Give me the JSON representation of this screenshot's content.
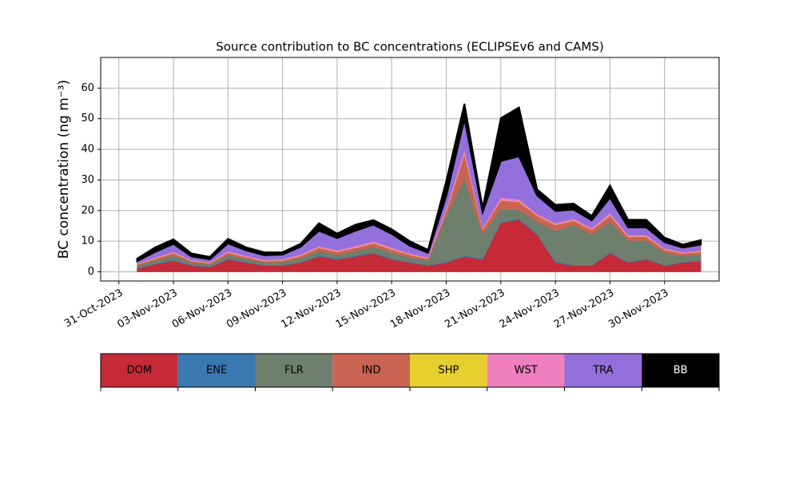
{
  "chart_data": {
    "type": "stacked_area",
    "title": "Source contribution to BC concentrations (ECLIPSEv6 and CAMS)",
    "y_label": "BC concentration (ng m⁻³)",
    "x": [
      "2023-11-01",
      "2023-11-02",
      "2023-11-03",
      "2023-11-04",
      "2023-11-05",
      "2023-11-06",
      "2023-11-07",
      "2023-11-08",
      "2023-11-09",
      "2023-11-10",
      "2023-11-11",
      "2023-11-12",
      "2023-11-13",
      "2023-11-14",
      "2023-11-15",
      "2023-11-16",
      "2023-11-17",
      "2023-11-18",
      "2023-11-19",
      "2023-11-20",
      "2023-11-21",
      "2023-11-22",
      "2023-11-23",
      "2023-11-24",
      "2023-11-25",
      "2023-11-26",
      "2023-11-27",
      "2023-11-28",
      "2023-11-29",
      "2023-11-30",
      "2023-12-01",
      "2023-12-02"
    ],
    "series": [
      {
        "name": "DOM",
        "color": "#c52a36",
        "values": [
          1,
          2.5,
          3.5,
          2,
          1.5,
          4,
          3,
          2,
          2,
          3,
          5,
          4,
          5,
          6,
          4,
          3,
          2,
          3,
          5,
          4,
          16,
          17,
          12,
          3,
          2,
          2,
          6,
          3,
          4,
          2,
          3,
          3.5
        ]
      },
      {
        "name": "ENE",
        "color": "#3a78b0",
        "values": [
          0.2,
          0.2,
          0.3,
          0.2,
          0.2,
          0.3,
          0.2,
          0.2,
          0.2,
          0.2,
          0.3,
          0.3,
          0.3,
          0.3,
          0.3,
          0.2,
          0.2,
          0.3,
          0.3,
          0.3,
          0.3,
          0.3,
          0.3,
          0.3,
          0.2,
          0.2,
          0.3,
          0.2,
          0.2,
          0.2,
          0.2,
          0.2
        ]
      },
      {
        "name": "FLR",
        "color": "#6e7f6e",
        "values": [
          0.8,
          1,
          1.5,
          0.8,
          0.7,
          1.2,
          1,
          0.8,
          1,
          1.2,
          1.5,
          1.2,
          1.5,
          1.8,
          2,
          1.5,
          1.5,
          15,
          25,
          8,
          4,
          3,
          4,
          10,
          13,
          10,
          10,
          7,
          6,
          4,
          2,
          2
        ]
      },
      {
        "name": "IND",
        "color": "#c96452",
        "values": [
          0.4,
          0.6,
          0.8,
          0.5,
          0.4,
          0.8,
          0.6,
          0.5,
          0.5,
          0.8,
          1,
          1,
          1,
          1.2,
          1,
          0.8,
          0.6,
          1.5,
          8,
          1.5,
          3,
          2.5,
          2,
          2,
          1.5,
          1.5,
          2,
          1.2,
          1.2,
          1,
          0.8,
          0.8
        ]
      },
      {
        "name": "SHP",
        "color": "#e6cf2e",
        "values": [
          0.1,
          0.1,
          0.1,
          0.1,
          0.1,
          0.1,
          0.1,
          0.1,
          0.1,
          0.1,
          0.1,
          0.1,
          0.1,
          0.1,
          0.1,
          0.1,
          0.1,
          0.1,
          0.1,
          0.1,
          0.1,
          0.1,
          0.1,
          0.1,
          0.1,
          0.1,
          0.1,
          0.1,
          0.1,
          0.1,
          0.1,
          0.1
        ]
      },
      {
        "name": "WST",
        "color": "#f07fc0",
        "values": [
          0.2,
          0.3,
          0.4,
          0.2,
          0.2,
          0.4,
          0.3,
          0.3,
          0.3,
          0.4,
          0.5,
          0.4,
          0.5,
          0.5,
          0.5,
          0.4,
          0.3,
          0.8,
          1.5,
          0.5,
          0.8,
          0.8,
          0.5,
          0.5,
          0.5,
          0.5,
          0.8,
          0.5,
          0.5,
          0.4,
          0.3,
          0.3
        ]
      },
      {
        "name": "TRA",
        "color": "#9370db",
        "values": [
          0.8,
          1.8,
          2.5,
          1.2,
          1,
          2.5,
          1.8,
          1.5,
          1.5,
          2.5,
          5,
          4,
          5,
          5.5,
          4.5,
          2.5,
          1.5,
          4,
          10,
          5,
          12,
          14,
          6,
          4,
          3,
          2.5,
          5,
          2.5,
          2.5,
          2,
          1.5,
          2
        ]
      },
      {
        "name": "BB",
        "color": "#000000",
        "values": [
          0.8,
          1.5,
          1.5,
          1,
          0.8,
          1.5,
          1,
          1,
          0.8,
          1,
          2.5,
          1.5,
          2,
          1.5,
          1.5,
          1.5,
          1,
          5,
          5,
          1.5,
          14,
          16,
          2,
          2,
          2,
          1.5,
          4,
          2.5,
          2.5,
          1.5,
          1,
          1.5
        ]
      }
    ],
    "xlim": [
      "2023-10-30",
      "2023-12-03"
    ],
    "xticks": [
      {
        "value": "2023-10-31",
        "label": "31-Oct-2023"
      },
      {
        "value": "2023-11-03",
        "label": "03-Nov-2023"
      },
      {
        "value": "2023-11-06",
        "label": "06-Nov-2023"
      },
      {
        "value": "2023-11-09",
        "label": "09-Nov-2023"
      },
      {
        "value": "2023-11-12",
        "label": "12-Nov-2023"
      },
      {
        "value": "2023-11-15",
        "label": "15-Nov-2023"
      },
      {
        "value": "2023-11-18",
        "label": "18-Nov-2023"
      },
      {
        "value": "2023-11-21",
        "label": "21-Nov-2023"
      },
      {
        "value": "2023-11-24",
        "label": "24-Nov-2023"
      },
      {
        "value": "2023-11-27",
        "label": "27-Nov-2023"
      },
      {
        "value": "2023-11-30",
        "label": "30-Nov-2023"
      }
    ],
    "ylim": [
      -3,
      70
    ],
    "yticks": [
      0,
      10,
      20,
      30,
      40,
      50,
      60
    ],
    "grid": true
  }
}
